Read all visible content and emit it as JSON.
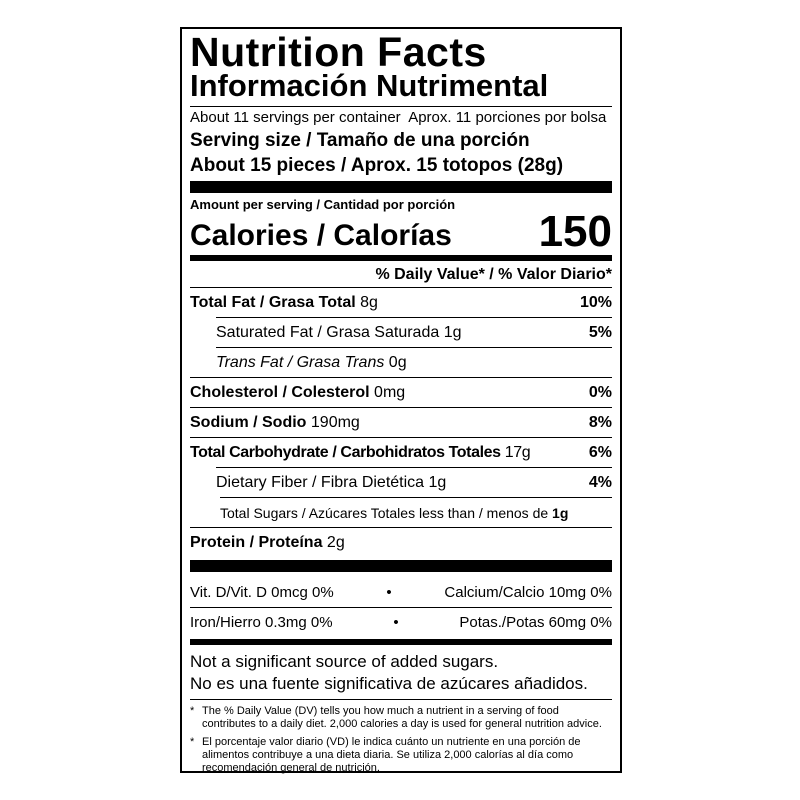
{
  "title": "Nutrition Facts",
  "title_es": "Información Nutrimental",
  "servings": "About 11 servings per container  Aprox. 11 porciones por bolsa",
  "serving_size_label": "Serving size / Tamaño de una porción",
  "serving_size": "About 15 pieces / Aprox. 15 totopos (28g)",
  "amount_per_serving": "Amount per serving / Cantidad por porción",
  "calories_label": "Calories / Calorías",
  "calories": "150",
  "dv_header": "% Daily Value* / % Valor Diario*",
  "nutrients": [
    {
      "name": "Total Fat / Grasa Total",
      "amount": "8g",
      "dv": "10%"
    },
    {
      "name": "Saturated Fat / Grasa Saturada",
      "amount": "1g",
      "dv": "5%"
    },
    {
      "name": "Trans Fat / Grasa Trans",
      "amount": "0g"
    },
    {
      "name": "Cholesterol / Colesterol",
      "amount": "0mg",
      "dv": "0%"
    },
    {
      "name": "Sodium / Sodio",
      "amount": "190mg",
      "dv": "8%"
    },
    {
      "name": "Total Carbohydrate / Carbohidratos Totales",
      "amount": "17g",
      "dv": "6%"
    },
    {
      "name": "Dietary Fiber / Fibra Dietética",
      "amount": "1g",
      "dv": "4%"
    },
    {
      "name": "Total Sugars / Azúcares Totales less than / menos de",
      "amount": "1g"
    },
    {
      "name": "Protein / Proteína",
      "amount": "2g"
    }
  ],
  "vitamins": [
    [
      "Vit. D/Vit. D 0mcg 0%",
      "Calcium/Calcio 10mg 0%"
    ],
    [
      "Iron/Hierro 0.3mg 0%",
      "Potas./Potas 60mg 0%"
    ]
  ],
  "notes": [
    "Not a significant source of added sugars.",
    "No es una fuente significativa de azúcares añadidos."
  ],
  "footnotes": [
    "The % Daily Value (DV) tells you how much a nutrient in a serving of food contributes to a daily diet. 2,000 calories a day is used for general nutrition advice.",
    "El porcentaje valor diario (VD) le indica cuánto un nutriente en una porción de alimentos contribuye a una dieta diaria. Se utiliza 2,000 calorías al día como recomendación general de nutrición."
  ]
}
